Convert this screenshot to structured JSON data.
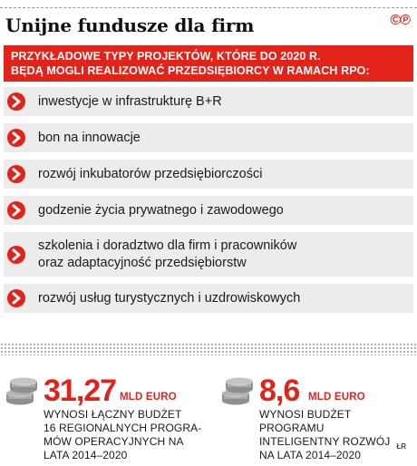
{
  "header": {
    "title": "Unijne fundusze dla firm",
    "logo": "©℗"
  },
  "banner": {
    "line1": "PRZYKŁADOWE TYPY PROJEKTÓW, KTÓRE DO 2020 R.",
    "line2": "BĘDĄ MOGLI REALIZOWAĆ PRZEDSIĘBIORCY W RAMACH RPO:"
  },
  "projects": [
    {
      "line1": "inwestycje w infrastrukturę B+R"
    },
    {
      "line1": "bon na innowacje"
    },
    {
      "line1": "rozwój inkubatorów przedsiębiorczości"
    },
    {
      "line1": "godzenie życia prywatnego i zawodowego"
    },
    {
      "line1": "szkolenia i doradztwo dla firm i pracowników",
      "line2": "oraz adaptacyjność przedsiębiorstw"
    },
    {
      "line1": "rozwój usług turystycznych i uzdrowiskowych"
    }
  ],
  "stats": [
    {
      "value": "31,27",
      "unit": "MLD EURO",
      "desc": [
        "WYNOSI ŁĄCZNY BUDŻET",
        "16 REGIONALNYCH PROGRA-",
        "MÓW OPERACYJNYCH NA",
        "LATA 2014–2020"
      ]
    },
    {
      "value": "8,6",
      "unit": "MLD EURO",
      "desc": [
        "WYNOSI BUDŻET PROGRAMU",
        "INTELIGENTNY ROZWÓJ",
        "NA LATA 2014–2020"
      ]
    }
  ],
  "credit": "ŁR",
  "colors": {
    "accent": "#e2231a",
    "row_bg": "#ececec",
    "coin": "#9a9a9a"
  },
  "icons": {
    "bullet": "arrow-right-circle-icon",
    "money": "coin-stack-icon"
  }
}
